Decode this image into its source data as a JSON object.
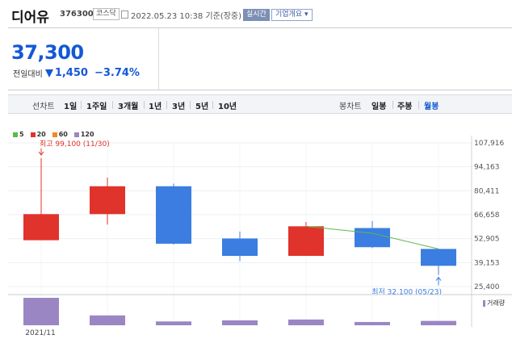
{
  "header": {
    "name": "디어유",
    "code": "376300",
    "market": "코스닥",
    "datetime": "2022.05.23 10:38 기준(장중)",
    "realtime_label": "실시간",
    "corp_info_label": "기업개요 ▾"
  },
  "price": {
    "current": "37,300",
    "change_label": "전일대비",
    "change": "1,450",
    "change_pct": "−3.74%"
  },
  "toolbar": {
    "line_chart_label": "선차트",
    "line_periods": [
      "1일",
      "1주일",
      "3개월",
      "1년",
      "3년",
      "5년",
      "10년"
    ],
    "candle_chart_label": "봉차트",
    "candle_periods": [
      "일봉",
      "주봉",
      "월봉"
    ],
    "active_candle": "월봉"
  },
  "colors": {
    "up": "#e0332b",
    "down": "#3b7de0",
    "ma5": "#5cb94a",
    "ma20": "#e0332b",
    "ma60": "#f08a24",
    "ma120": "#9b86c4",
    "volume": "#9b86c4",
    "price_blue": "#1358d6"
  },
  "chart_data": {
    "type": "candlestick",
    "legend": [
      "5",
      "20",
      "60",
      "120"
    ],
    "y_ticks": [
      "107,916",
      "94,163",
      "80,411",
      "66,658",
      "52,905",
      "39,153",
      "25,400"
    ],
    "ylim": [
      25400,
      107916
    ],
    "x_labels": [
      "2021/11"
    ],
    "candles": [
      {
        "open": 52000,
        "close": 67000,
        "high": 99100,
        "low": 52000
      },
      {
        "open": 67000,
        "close": 83000,
        "high": 88000,
        "low": 61000
      },
      {
        "open": 83000,
        "close": 50000,
        "high": 84500,
        "low": 49500
      },
      {
        "open": 53000,
        "close": 43000,
        "high": 57000,
        "low": 40000
      },
      {
        "open": 43000,
        "close": 60000,
        "high": 62500,
        "low": 43000
      },
      {
        "open": 59000,
        "close": 48000,
        "high": 63000,
        "low": 47500
      },
      {
        "open": 47000,
        "close": 37300,
        "high": 47000,
        "low": 32100
      }
    ],
    "ma5": [
      null,
      null,
      null,
      null,
      60000,
      56000,
      47000
    ],
    "volume": [
      1.0,
      0.36,
      0.14,
      0.18,
      0.21,
      0.12,
      0.16
    ],
    "annotation_high": "최고 99,100 (11/30)",
    "annotation_low": "최저 32,100 (05/23)",
    "volume_label": "거래량"
  }
}
